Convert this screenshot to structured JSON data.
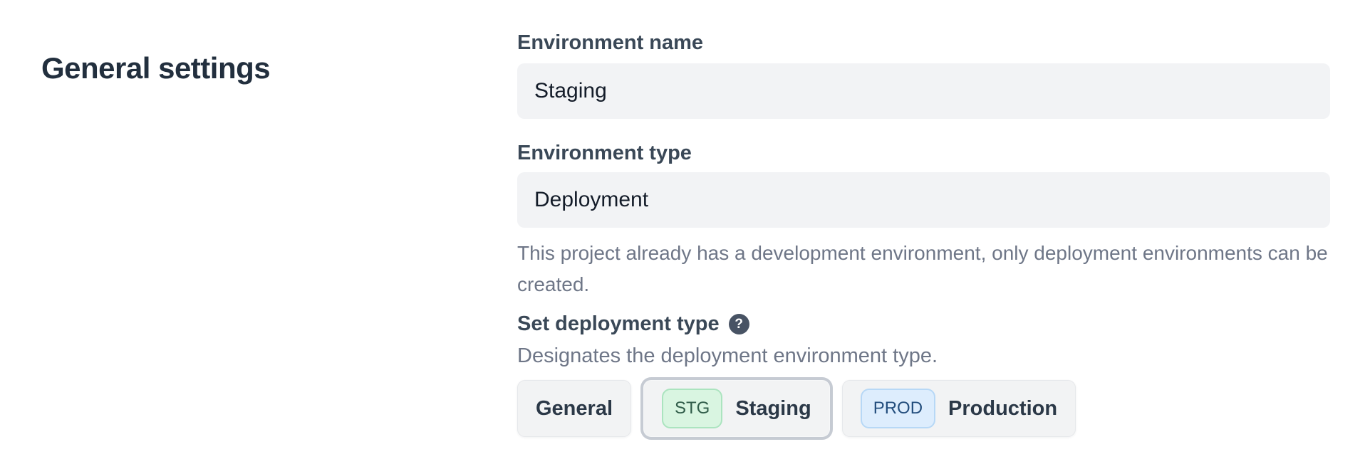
{
  "page": {
    "background": "#ffffff"
  },
  "heading": {
    "title": "General settings"
  },
  "form": {
    "environment_name": {
      "label": "Environment name",
      "value": "Staging"
    },
    "environment_type": {
      "label": "Environment type",
      "value": "Deployment",
      "help": "This project already has a development environment, only deployment environments can be created."
    },
    "deployment_type": {
      "label": "Set deployment type",
      "help_icon_glyph": "?",
      "description": "Designates the deployment environment type.",
      "options": [
        {
          "label": "General",
          "badge": null,
          "selected": false
        },
        {
          "label": "Staging",
          "badge": "STG",
          "selected": true,
          "badge_bg": "#d9f5e1",
          "badge_border": "#abe4bf",
          "badge_color": "#305c49"
        },
        {
          "label": "Production",
          "badge": "PROD",
          "selected": false,
          "badge_bg": "#ddedfd",
          "badge_border": "#b7d8f6",
          "badge_color": "#234e7d"
        }
      ]
    }
  },
  "colors": {
    "heading_text": "#222f3e",
    "label_text": "#3a4857",
    "input_background": "#f2f3f5",
    "input_text": "#141c29",
    "helper_text": "#6e7687",
    "button_background": "#f2f3f4",
    "button_text": "#2b3847",
    "selected_ring": "#c6cbd3",
    "help_icon_background": "#485364"
  }
}
